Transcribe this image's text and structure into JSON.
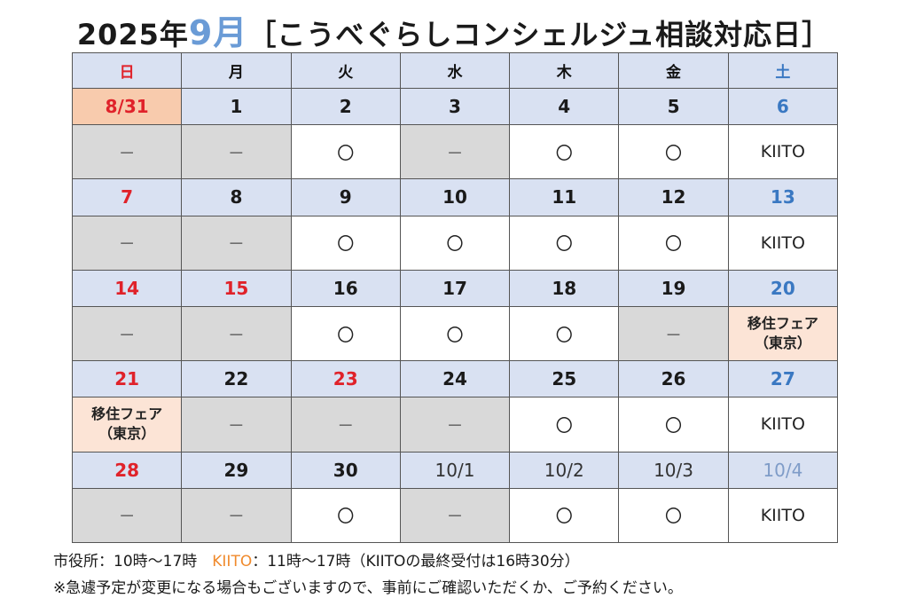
{
  "title": {
    "prefix": "2025年",
    "month": "9月",
    "suffix": "［こうべぐらしコンシェルジュ相談対応日］"
  },
  "weekdays": [
    "日",
    "月",
    "火",
    "水",
    "木",
    "金",
    "土"
  ],
  "weeks": [
    {
      "dates": [
        "8/31",
        "1",
        "2",
        "3",
        "4",
        "5",
        "6"
      ],
      "statuses": [
        "－",
        "－",
        "〇",
        "－",
        "〇",
        "〇",
        "KIITO"
      ]
    },
    {
      "dates": [
        "7",
        "8",
        "9",
        "10",
        "11",
        "12",
        "13"
      ],
      "statuses": [
        "－",
        "－",
        "〇",
        "〇",
        "〇",
        "〇",
        "KIITO"
      ]
    },
    {
      "dates": [
        "14",
        "15",
        "16",
        "17",
        "18",
        "19",
        "20"
      ],
      "statuses": [
        "－",
        "－",
        "〇",
        "〇",
        "〇",
        "－",
        "移住フェア|（東京）"
      ]
    },
    {
      "dates": [
        "21",
        "22",
        "23",
        "24",
        "25",
        "26",
        "27"
      ],
      "statuses": [
        "移住フェア|（東京）",
        "－",
        "－",
        "－",
        "〇",
        "〇",
        "KIITO"
      ]
    },
    {
      "dates": [
        "28",
        "29",
        "30",
        "10/1",
        "10/2",
        "10/3",
        "10/4"
      ],
      "statuses": [
        "－",
        "－",
        "〇",
        "－",
        "〇",
        "〇",
        "KIITO"
      ]
    }
  ],
  "footer": {
    "line1_a": "市役所：10時～17時　",
    "line1_kiito": "KIITO",
    "line1_b": "：11時～17時（KIITOの最終受付は16時30分）",
    "line2": "※急遽予定が変更になる場合もございますので、事前にご確認いただくか、ご予約ください。"
  },
  "colors": {
    "header_bg": "#d9e1f2",
    "closed_bg": "#d9d9d9",
    "fair_bg": "#fce4d6",
    "holiday_red": "#e0222a",
    "saturday_blue": "#3a78c2",
    "kiito_orange": "#f08a2c"
  }
}
